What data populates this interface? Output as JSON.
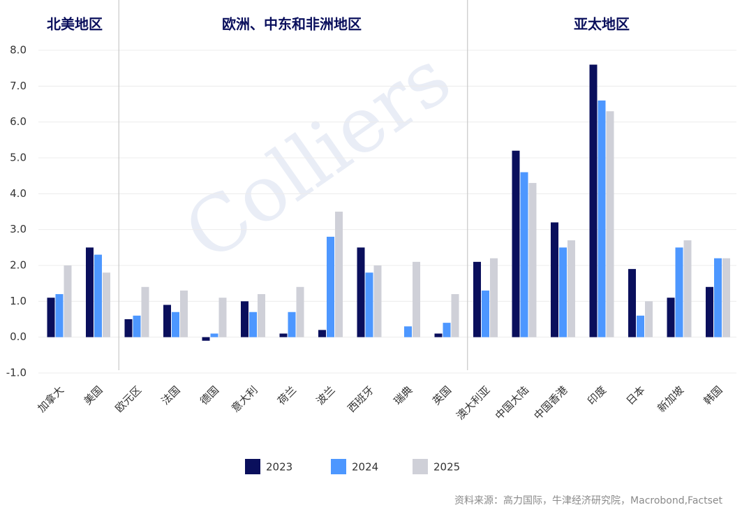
{
  "chart_data": {
    "type": "bar",
    "regions": [
      "北美地区",
      "欧洲、中东和非洲地区",
      "亚太地区"
    ],
    "categories": [
      "加拿大",
      "美国",
      "欧元区",
      "法国",
      "德国",
      "意大利",
      "荷兰",
      "波兰",
      "西班牙",
      "瑞典",
      "英国",
      "澳大利亚",
      "中国大陆",
      "中国香港",
      "印度",
      "日本",
      "新加坡",
      "韩国"
    ],
    "series": [
      {
        "name": "2023",
        "color": "#0a0f5c",
        "values": [
          1.1,
          2.5,
          0.5,
          0.9,
          -0.1,
          1.0,
          0.1,
          0.2,
          2.5,
          0.0,
          0.1,
          2.1,
          5.2,
          3.2,
          7.6,
          1.9,
          1.1,
          1.4
        ]
      },
      {
        "name": "2024",
        "color": "#4d97ff",
        "values": [
          1.2,
          2.3,
          0.6,
          0.7,
          0.1,
          0.7,
          0.7,
          2.8,
          1.8,
          0.3,
          0.4,
          1.3,
          4.6,
          2.5,
          6.6,
          0.6,
          2.5,
          2.2
        ]
      },
      {
        "name": "2025",
        "color": "#cfd0d8",
        "values": [
          2.0,
          1.8,
          1.4,
          1.3,
          1.1,
          1.2,
          1.4,
          3.5,
          2.0,
          2.1,
          1.2,
          2.2,
          4.3,
          2.7,
          6.3,
          1.0,
          2.7,
          2.2
        ]
      }
    ],
    "ylim": [
      -1,
      8
    ],
    "yticks": [
      {
        "value": -1,
        "label": "-1.0"
      },
      {
        "value": 0,
        "label": "0.0"
      },
      {
        "value": 1,
        "label": "1.0"
      },
      {
        "value": 2,
        "label": "2.0"
      },
      {
        "value": 3,
        "label": "3.0"
      },
      {
        "value": 4,
        "label": "4.0"
      },
      {
        "value": 5,
        "label": "5.0"
      },
      {
        "value": 6,
        "label": "6.0"
      },
      {
        "value": 7,
        "label": "7.0"
      },
      {
        "value": 8,
        "label": "8.0"
      }
    ],
    "grid": true,
    "watermark": "Colliers",
    "source": "资料来源：高力国际，牛津经济研究院，Macrobond,Factset"
  }
}
